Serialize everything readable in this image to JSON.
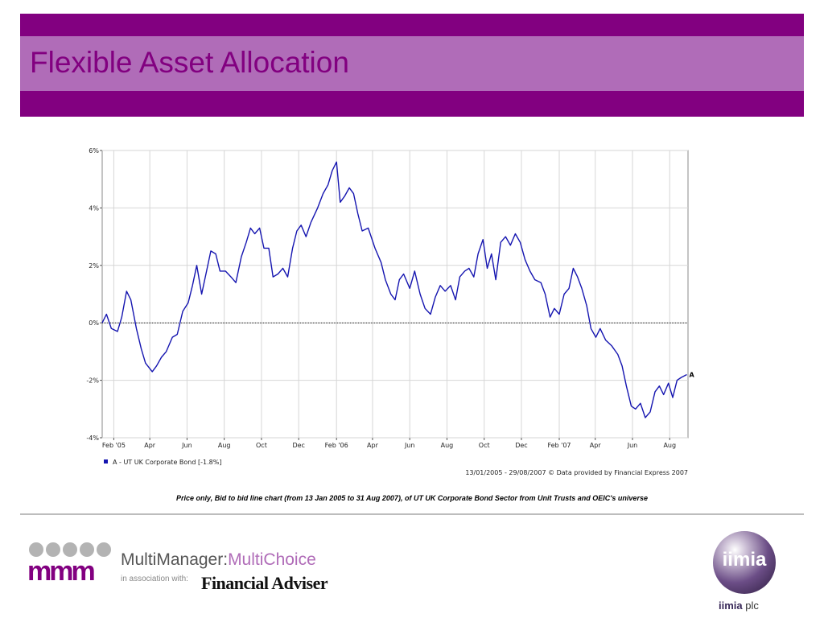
{
  "page": {
    "title": "Flexible Asset Allocation",
    "caption": "Price only, Bid to bid line chart (from 13 Jan 2005 to 31 Aug 2007), of UT UK Corporate Bond Sector from Unit Trusts and OEIC's universe"
  },
  "logos": {
    "multimanager": {
      "mark": "mmm",
      "name_main": "MultiManager:",
      "name_accent": "MultiChoice",
      "association": "in association with:",
      "partner": "Financial Adviser"
    },
    "iimia": {
      "globe_text": "iimia",
      "name": "iimia",
      "suffix": "plc"
    }
  },
  "colors": {
    "header_purple": "#820080",
    "title_band": "#b06cb8",
    "series_line": "#1515b0"
  },
  "chart_data": {
    "type": "line",
    "x_ticks": [
      "Feb '05",
      "Apr",
      "Jun",
      "Aug",
      "Oct",
      "Dec",
      "Feb '06",
      "Apr",
      "Jun",
      "Aug",
      "Oct",
      "Dec",
      "Feb '07",
      "Apr",
      "Jun",
      "Aug"
    ],
    "y_ticks": [
      "6%",
      "4%",
      "2%",
      "0%",
      "-2%",
      "-4%"
    ],
    "ylim": [
      -4,
      6
    ],
    "xlim": [
      "2005-01-13",
      "2007-08-31"
    ],
    "grid": true,
    "zero_line": true,
    "end_label": "A",
    "legend": "A - UT UK Corporate Bond [-1.8%]",
    "source": "13/01/2005 - 29/08/2007 © Data provided by Financial Express 2007",
    "series": [
      {
        "name": "A - UT UK Corporate Bond [-1.8%]",
        "points": [
          [
            "2005-01-13",
            0.0
          ],
          [
            "2005-01-20",
            0.3
          ],
          [
            "2005-01-28",
            -0.2
          ],
          [
            "2005-02-07",
            -0.3
          ],
          [
            "2005-02-14",
            0.2
          ],
          [
            "2005-02-22",
            1.1
          ],
          [
            "2005-03-01",
            0.8
          ],
          [
            "2005-03-10",
            -0.2
          ],
          [
            "2005-03-18",
            -0.9
          ],
          [
            "2005-03-25",
            -1.4
          ],
          [
            "2005-04-05",
            -1.7
          ],
          [
            "2005-04-12",
            -1.5
          ],
          [
            "2005-04-20",
            -1.2
          ],
          [
            "2005-04-28",
            -1.0
          ],
          [
            "2005-05-08",
            -0.5
          ],
          [
            "2005-05-16",
            -0.4
          ],
          [
            "2005-05-25",
            0.4
          ],
          [
            "2005-06-03",
            0.7
          ],
          [
            "2005-06-10",
            1.3
          ],
          [
            "2005-06-17",
            2.0
          ],
          [
            "2005-06-25",
            1.0
          ],
          [
            "2005-07-03",
            1.8
          ],
          [
            "2005-07-10",
            2.5
          ],
          [
            "2005-07-18",
            2.4
          ],
          [
            "2005-07-25",
            1.8
          ],
          [
            "2005-08-03",
            1.8
          ],
          [
            "2005-08-12",
            1.6
          ],
          [
            "2005-08-20",
            1.4
          ],
          [
            "2005-08-29",
            2.3
          ],
          [
            "2005-09-06",
            2.8
          ],
          [
            "2005-09-13",
            3.3
          ],
          [
            "2005-09-20",
            3.1
          ],
          [
            "2005-09-28",
            3.3
          ],
          [
            "2005-10-05",
            2.6
          ],
          [
            "2005-10-13",
            2.6
          ],
          [
            "2005-10-20",
            1.6
          ],
          [
            "2005-10-28",
            1.7
          ],
          [
            "2005-11-05",
            1.9
          ],
          [
            "2005-11-13",
            1.6
          ],
          [
            "2005-11-21",
            2.6
          ],
          [
            "2005-11-28",
            3.2
          ],
          [
            "2005-12-05",
            3.4
          ],
          [
            "2005-12-13",
            3.0
          ],
          [
            "2005-12-21",
            3.5
          ],
          [
            "2006-01-01",
            4.0
          ],
          [
            "2006-01-10",
            4.5
          ],
          [
            "2006-01-18",
            4.8
          ],
          [
            "2006-01-25",
            5.3
          ],
          [
            "2006-02-01",
            5.6
          ],
          [
            "2006-02-07",
            4.2
          ],
          [
            "2006-02-14",
            4.4
          ],
          [
            "2006-02-22",
            4.7
          ],
          [
            "2006-03-01",
            4.5
          ],
          [
            "2006-03-08",
            3.8
          ],
          [
            "2006-03-15",
            3.2
          ],
          [
            "2006-03-25",
            3.3
          ],
          [
            "2006-04-05",
            2.6
          ],
          [
            "2006-04-15",
            2.1
          ],
          [
            "2006-04-22",
            1.5
          ],
          [
            "2006-05-01",
            1.0
          ],
          [
            "2006-05-08",
            0.8
          ],
          [
            "2006-05-15",
            1.5
          ],
          [
            "2006-05-22",
            1.7
          ],
          [
            "2006-06-01",
            1.2
          ],
          [
            "2006-06-09",
            1.8
          ],
          [
            "2006-06-18",
            1.0
          ],
          [
            "2006-06-26",
            0.5
          ],
          [
            "2006-07-05",
            0.3
          ],
          [
            "2006-07-13",
            0.9
          ],
          [
            "2006-07-21",
            1.3
          ],
          [
            "2006-07-29",
            1.1
          ],
          [
            "2006-08-07",
            1.3
          ],
          [
            "2006-08-15",
            0.8
          ],
          [
            "2006-08-22",
            1.6
          ],
          [
            "2006-08-30",
            1.8
          ],
          [
            "2006-09-06",
            1.9
          ],
          [
            "2006-09-14",
            1.6
          ],
          [
            "2006-09-21",
            2.4
          ],
          [
            "2006-09-29",
            2.9
          ],
          [
            "2006-10-06",
            1.9
          ],
          [
            "2006-10-13",
            2.4
          ],
          [
            "2006-10-20",
            1.5
          ],
          [
            "2006-10-28",
            2.8
          ],
          [
            "2006-11-05",
            3.0
          ],
          [
            "2006-11-13",
            2.7
          ],
          [
            "2006-11-21",
            3.1
          ],
          [
            "2006-11-29",
            2.8
          ],
          [
            "2006-12-07",
            2.2
          ],
          [
            "2006-12-15",
            1.8
          ],
          [
            "2006-12-23",
            1.5
          ],
          [
            "2007-01-02",
            1.4
          ],
          [
            "2007-01-09",
            1.0
          ],
          [
            "2007-01-17",
            0.2
          ],
          [
            "2007-01-24",
            0.5
          ],
          [
            "2007-02-01",
            0.3
          ],
          [
            "2007-02-09",
            1.0
          ],
          [
            "2007-02-17",
            1.2
          ],
          [
            "2007-02-24",
            1.9
          ],
          [
            "2007-03-03",
            1.6
          ],
          [
            "2007-03-10",
            1.2
          ],
          [
            "2007-03-18",
            0.6
          ],
          [
            "2007-03-25",
            -0.2
          ],
          [
            "2007-04-02",
            -0.5
          ],
          [
            "2007-04-09",
            -0.2
          ],
          [
            "2007-04-18",
            -0.6
          ],
          [
            "2007-04-28",
            -0.8
          ],
          [
            "2007-05-08",
            -1.1
          ],
          [
            "2007-05-15",
            -1.5
          ],
          [
            "2007-05-22",
            -2.2
          ],
          [
            "2007-05-30",
            -2.9
          ],
          [
            "2007-06-06",
            -3.0
          ],
          [
            "2007-06-14",
            -2.8
          ],
          [
            "2007-06-22",
            -3.3
          ],
          [
            "2007-06-30",
            -3.1
          ],
          [
            "2007-07-08",
            -2.4
          ],
          [
            "2007-07-15",
            -2.2
          ],
          [
            "2007-07-22",
            -2.5
          ],
          [
            "2007-07-30",
            -2.1
          ],
          [
            "2007-08-06",
            -2.6
          ],
          [
            "2007-08-13",
            -2.0
          ],
          [
            "2007-08-20",
            -1.9
          ],
          [
            "2007-08-29",
            -1.8
          ]
        ]
      }
    ]
  }
}
